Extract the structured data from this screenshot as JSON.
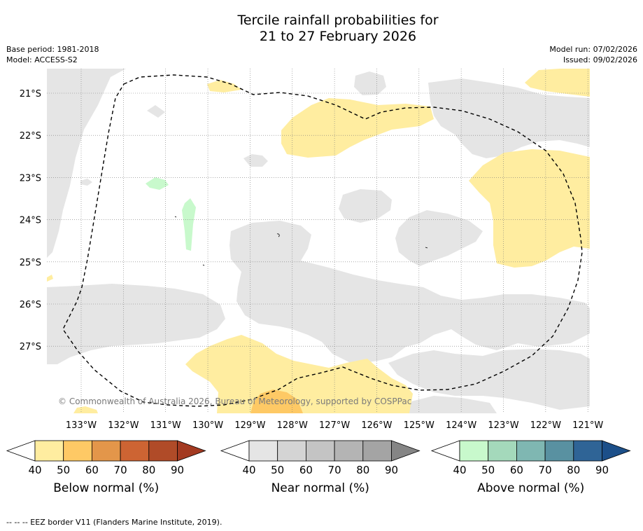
{
  "title_line1": "Tercile rainfall probabilities for",
  "title_line2": "21 to 27 February 2026",
  "base_period": "Base period: 1981-2018",
  "model": "Model: ACCESS-S2",
  "model_run": "Model run: 07/02/2026",
  "issued": "Issued: 09/02/2026",
  "copyright": "© Commonwealth of Australia 2026, Bureau of Meteorology, supported by COSPPac",
  "footer": "-- -- -- EEZ border V11 (Flanders Marine Institute, 2019).",
  "map": {
    "lat_labels": [
      "21°S",
      "22°S",
      "23°S",
      "24°S",
      "25°S",
      "26°S",
      "27°S"
    ],
    "lon_labels": [
      "133°W",
      "132°W",
      "131°W",
      "130°W",
      "129°W",
      "128°W",
      "127°W",
      "126°W",
      "125°W",
      "124°W",
      "123°W",
      "122°W",
      "121°W"
    ],
    "colors": {
      "near_normal_40": "#e5e5e5",
      "below_normal_40": "#ffeda0",
      "below_normal_50": "#fec965",
      "above_normal_40": "#c8f9cc"
    }
  },
  "legends": [
    {
      "id": "below",
      "title": "Below normal (%)",
      "ticks": [
        "40",
        "50",
        "60",
        "70",
        "80",
        "90"
      ],
      "low_color": "#ffffff",
      "colors": [
        "#ffeda0",
        "#fec965",
        "#e3964a",
        "#cd6433",
        "#b04b28"
      ],
      "high_color": "#a33a21"
    },
    {
      "id": "near",
      "title": "Near normal (%)",
      "ticks": [
        "40",
        "50",
        "60",
        "70",
        "80",
        "90"
      ],
      "low_color": "#ffffff",
      "colors": [
        "#e5e5e5",
        "#d4d4d4",
        "#c4c4c4",
        "#b4b4b4",
        "#a4a4a4"
      ],
      "high_color": "#858585"
    },
    {
      "id": "above",
      "title": "Above normal (%)",
      "ticks": [
        "40",
        "50",
        "60",
        "70",
        "80",
        "90"
      ],
      "low_color": "#ffffff",
      "colors": [
        "#c8f9cc",
        "#a4d9bb",
        "#7fb7b2",
        "#5991a1",
        "#2f6496"
      ],
      "high_color": "#1c4f89"
    }
  ]
}
